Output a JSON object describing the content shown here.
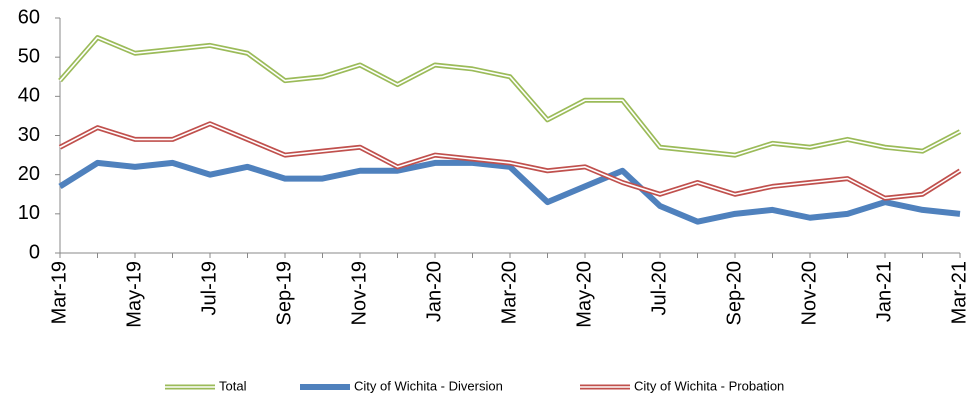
{
  "chart_data": {
    "type": "line",
    "categories": [
      "Mar-19",
      null,
      "May-19",
      null,
      "Jul-19",
      null,
      "Sep-19",
      null,
      "Nov-19",
      null,
      "Jan-20",
      null,
      "Mar-20",
      null,
      "May-20",
      null,
      "Jul-20",
      null,
      "Sep-20",
      null,
      "Nov-20",
      null,
      "Jan-21",
      null,
      "Mar-21"
    ],
    "series": [
      {
        "name": "Total",
        "color": "#9bbb59",
        "style": "double",
        "values": [
          44,
          55,
          51,
          52,
          53,
          51,
          44,
          45,
          48,
          43,
          48,
          47,
          45,
          34,
          39,
          39,
          27,
          26,
          25,
          28,
          27,
          29,
          27,
          26,
          31
        ]
      },
      {
        "name": "City of Wichita - Diversion",
        "color": "#4f81bd",
        "style": "solid",
        "values": [
          17,
          23,
          22,
          23,
          20,
          22,
          19,
          19,
          21,
          21,
          23,
          23,
          22,
          13,
          17,
          21,
          12,
          8,
          10,
          11,
          9,
          10,
          13,
          11,
          10
        ]
      },
      {
        "name": "City of Wichita - Probation",
        "color": "#c0504d",
        "style": "double",
        "values": [
          27,
          32,
          29,
          29,
          33,
          29,
          25,
          26,
          27,
          22,
          25,
          24,
          23,
          21,
          22,
          18,
          15,
          18,
          15,
          17,
          18,
          19,
          14,
          15,
          21
        ]
      }
    ],
    "ylim": [
      0,
      60
    ],
    "yticks": [
      0,
      10,
      20,
      30,
      40,
      50,
      60
    ],
    "legend": "bottom"
  }
}
